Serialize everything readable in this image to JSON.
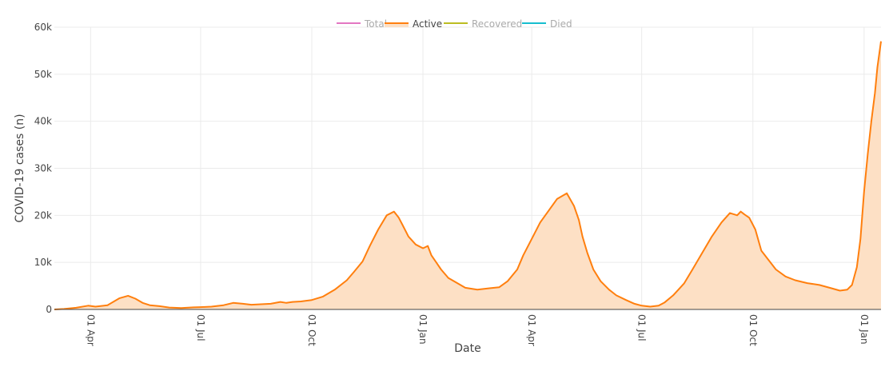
{
  "chart_data": {
    "type": "area",
    "title": "",
    "xlabel": "Date",
    "ylabel": "COVID-19 cases (n)",
    "ylim": [
      0,
      60000
    ],
    "xlim": [
      "2020-03-02",
      "2022-01-15"
    ],
    "grid": true,
    "legend_placement": "top-center",
    "y_ticks": [
      {
        "value": 0,
        "label": "0"
      },
      {
        "value": 10000,
        "label": "10k"
      },
      {
        "value": 20000,
        "label": "20k"
      },
      {
        "value": 30000,
        "label": "30k"
      },
      {
        "value": 40000,
        "label": "40k"
      },
      {
        "value": 50000,
        "label": "50k"
      },
      {
        "value": 60000,
        "label": "60k"
      }
    ],
    "x_ticks": [
      {
        "value": "2020-04-01",
        "label": "01 Apr"
      },
      {
        "value": "2020-07-01",
        "label": "01 Jul"
      },
      {
        "value": "2020-10-01",
        "label": "01 Oct"
      },
      {
        "value": "2021-01-01",
        "label": "01 Jan"
      },
      {
        "value": "2021-04-01",
        "label": "01 Apr"
      },
      {
        "value": "2021-07-01",
        "label": "01 Jul"
      },
      {
        "value": "2021-10-01",
        "label": "01 Oct"
      },
      {
        "value": "2022-01-01",
        "label": "01 Jan"
      }
    ],
    "legend": [
      {
        "name": "Total",
        "color": "#e377c2",
        "active": false
      },
      {
        "name": "Active",
        "color": "#ff7f0e",
        "active": true
      },
      {
        "name": "Recovered",
        "color": "#bcbd22",
        "active": false
      },
      {
        "name": "Died",
        "color": "#17becf",
        "active": false
      }
    ],
    "series": [
      {
        "name": "Active",
        "color": "#ff7f0e",
        "fill": "#fde0c5",
        "x": [
          "2020-03-02",
          "2020-03-10",
          "2020-03-20",
          "2020-03-30",
          "2020-04-05",
          "2020-04-15",
          "2020-04-25",
          "2020-05-02",
          "2020-05-08",
          "2020-05-14",
          "2020-05-20",
          "2020-05-28",
          "2020-06-05",
          "2020-06-15",
          "2020-06-25",
          "2020-07-01",
          "2020-07-10",
          "2020-07-20",
          "2020-07-28",
          "2020-08-05",
          "2020-08-12",
          "2020-08-20",
          "2020-08-28",
          "2020-09-05",
          "2020-09-10",
          "2020-09-15",
          "2020-09-22",
          "2020-10-01",
          "2020-10-10",
          "2020-10-20",
          "2020-10-30",
          "2020-11-05",
          "2020-11-12",
          "2020-11-18",
          "2020-11-25",
          "2020-12-02",
          "2020-12-08",
          "2020-12-12",
          "2020-12-15",
          "2020-12-20",
          "2020-12-26",
          "2021-01-01",
          "2021-01-05",
          "2021-01-08",
          "2021-01-12",
          "2021-01-16",
          "2021-01-22",
          "2021-01-28",
          "2021-02-05",
          "2021-02-15",
          "2021-02-25",
          "2021-03-05",
          "2021-03-12",
          "2021-03-20",
          "2021-03-25",
          "2021-04-01",
          "2021-04-08",
          "2021-04-15",
          "2021-04-22",
          "2021-04-30",
          "2021-05-06",
          "2021-05-10",
          "2021-05-13",
          "2021-05-17",
          "2021-05-22",
          "2021-05-28",
          "2021-06-04",
          "2021-06-10",
          "2021-06-18",
          "2021-06-25",
          "2021-07-01",
          "2021-07-08",
          "2021-07-15",
          "2021-07-20",
          "2021-07-27",
          "2021-08-05",
          "2021-08-12",
          "2021-08-20",
          "2021-08-28",
          "2021-09-05",
          "2021-09-12",
          "2021-09-18",
          "2021-09-21",
          "2021-09-24",
          "2021-09-28",
          "2021-10-03",
          "2021-10-08",
          "2021-10-14",
          "2021-10-20",
          "2021-10-28",
          "2021-11-05",
          "2021-11-15",
          "2021-11-25",
          "2021-12-05",
          "2021-12-12",
          "2021-12-18",
          "2021-12-22",
          "2021-12-26",
          "2021-12-29",
          "2022-01-01",
          "2022-01-04",
          "2022-01-07",
          "2022-01-10",
          "2022-01-12",
          "2022-01-15"
        ],
        "y": [
          0,
          100,
          350,
          800,
          600,
          900,
          2400,
          2900,
          2300,
          1400,
          900,
          700,
          400,
          300,
          450,
          500,
          600,
          900,
          1400,
          1200,
          1000,
          1100,
          1200,
          1600,
          1400,
          1600,
          1700,
          2000,
          2700,
          4200,
          6200,
          8000,
          10200,
          13500,
          17000,
          20000,
          20800,
          19500,
          18000,
          15500,
          13800,
          13000,
          13500,
          11500,
          10000,
          8500,
          6700,
          5800,
          4600,
          4200,
          4500,
          4700,
          6000,
          8500,
          11500,
          15000,
          18500,
          21000,
          23500,
          24700,
          22000,
          19000,
          15500,
          12000,
          8500,
          6000,
          4200,
          3000,
          2000,
          1200,
          800,
          600,
          800,
          1500,
          3000,
          5500,
          8500,
          12000,
          15500,
          18500,
          20500,
          20000,
          20800,
          20200,
          19500,
          17000,
          12500,
          10500,
          8500,
          7000,
          6200,
          5600,
          5200,
          4500,
          4000,
          4200,
          5200,
          9000,
          15000,
          25000,
          33000,
          40000,
          46000,
          51500,
          57000
        ]
      }
    ]
  }
}
